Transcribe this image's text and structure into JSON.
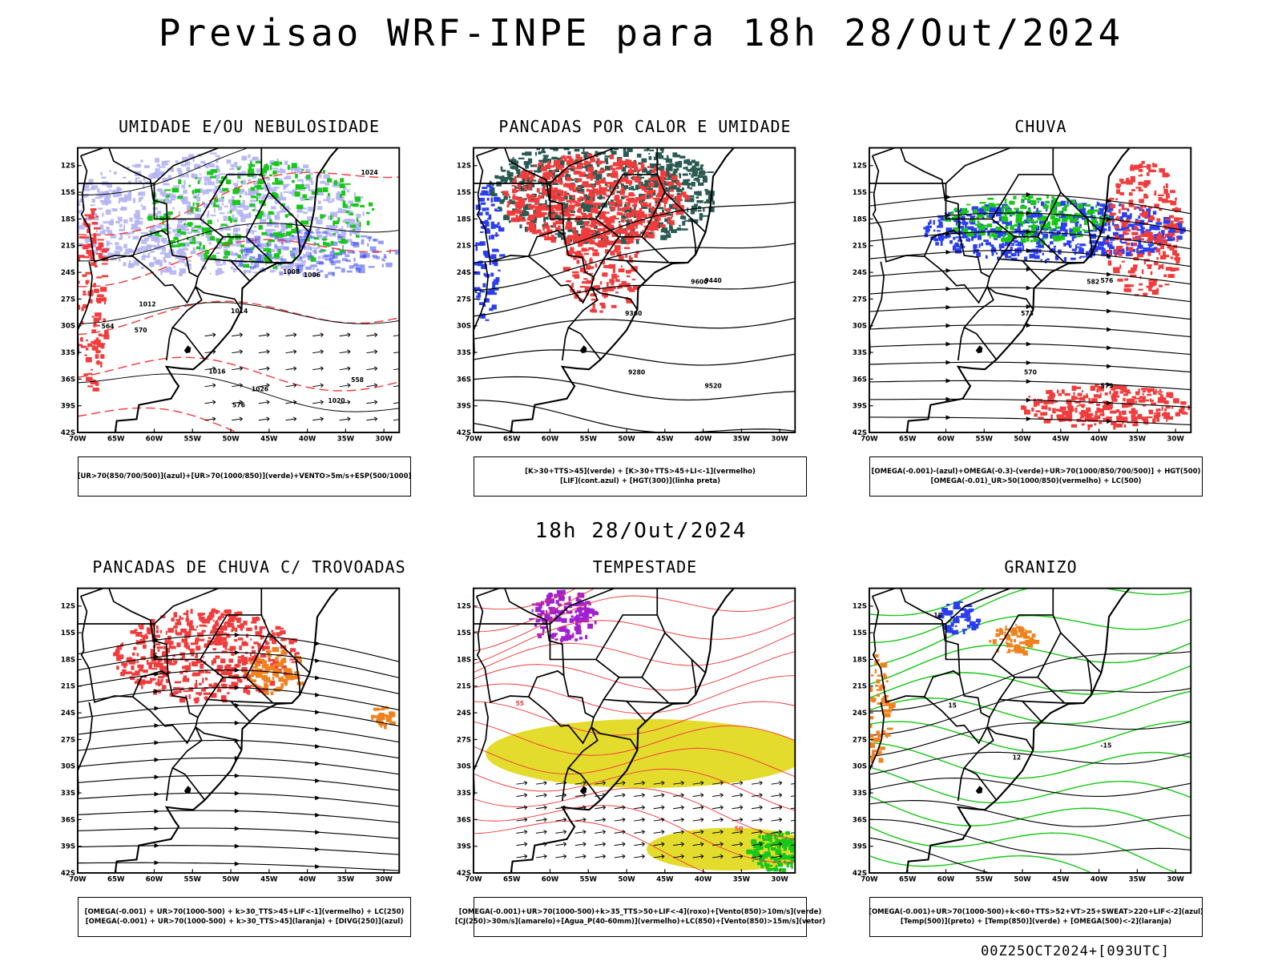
{
  "title": "Previsao WRF-INPE  para 18h 28/Out/2024",
  "subtitle": "18h 28/Out/2024",
  "footer": "00Z25OCT2024+[093UTC]",
  "colors": {
    "red": "#f03c3c",
    "blue": "#2a3ef0",
    "green": "#18c818",
    "lavender": "#b4b4f4",
    "darkteal": "#2a5a52",
    "yellow": "#e4dc2c",
    "orange": "#f0821e",
    "purple": "#a020d0"
  },
  "chart_data": [
    {
      "type": "contour-map",
      "title": "UMIDADE E/OU NEBULOSIDADE",
      "legend_lines": [
        "[UR>70(850/700/500)](azul)+[UR>70(1000/850)](verde)+VENTO>5m/s+ESP(500/1000)"
      ],
      "x_ticks": [
        "70W",
        "65W",
        "60W",
        "55W",
        "50W",
        "45W",
        "40W",
        "35W",
        "30W"
      ],
      "y_ticks": [
        "12S",
        "15S",
        "18S",
        "21S",
        "24S",
        "27S",
        "30S",
        "33S",
        "36S",
        "39S",
        "42S"
      ],
      "xlim": [
        -70,
        -28
      ],
      "ylim": [
        -42,
        -10
      ],
      "contour_labels": [
        "1008",
        "1006",
        "1012",
        "1016",
        "1020",
        "1024",
        "1026",
        "1014",
        "570",
        "576",
        "564",
        "558"
      ]
    },
    {
      "type": "contour-map",
      "title": "PANCADAS POR CALOR E UMIDADE",
      "legend_lines": [
        "[K>30+TTS>45](verde) + [K>30+TTS>45+LI<-1](vermelho)",
        "[LIF](cont.azul) + [HGT(300)](linha preta)"
      ],
      "x_ticks": [
        "70W",
        "65W",
        "60W",
        "55W",
        "50W",
        "45W",
        "40W",
        "35W",
        "30W"
      ],
      "y_ticks": [
        "12S",
        "15S",
        "18S",
        "21S",
        "24S",
        "27S",
        "30S",
        "33S",
        "36S",
        "39S",
        "42S"
      ],
      "xlim": [
        -70,
        -28
      ],
      "ylim": [
        -42,
        -10
      ],
      "contour_labels": [
        "9600",
        "9520",
        "9440",
        "9360",
        "9280"
      ]
    },
    {
      "type": "contour-map",
      "title": "CHUVA",
      "legend_lines": [
        "[OMEGA(-0.001)-(azul)+OMEGA(-0.3)-(verde)+UR>70(1000/850/700/500)] + HGT(500)",
        "[OMEGA(-0.01)_UR>50(1000/850)(vermelho) + LC(500)"
      ],
      "x_ticks": [
        "70W",
        "65W",
        "60W",
        "55W",
        "50W",
        "45W",
        "40W",
        "35W",
        "30W"
      ],
      "y_ticks": [
        "12S",
        "15S",
        "18S",
        "21S",
        "24S",
        "27S",
        "30S",
        "33S",
        "36S",
        "39S",
        "42S"
      ],
      "xlim": [
        -70,
        -28
      ],
      "ylim": [
        -42,
        -10
      ],
      "contour_labels": [
        "582",
        "579",
        "576",
        "573",
        "570"
      ]
    },
    {
      "type": "streamline-map",
      "title": "PANCADAS DE CHUVA C/ TROVOADAS",
      "legend_lines": [
        "[OMEGA(-0.001) + UR>70(1000-500) + k>30_TTS>45+LIF<-1](vermelho) + LC(250)",
        "[OMEGA(-0.001) + UR>70(1000-500) + k>30_TTS>45](laranja) + [DIVG(250)](azul)"
      ],
      "x_ticks": [
        "70W",
        "65W",
        "60W",
        "55W",
        "50W",
        "45W",
        "40W",
        "35W",
        "30W"
      ],
      "y_ticks": [
        "12S",
        "15S",
        "18S",
        "21S",
        "24S",
        "27S",
        "30S",
        "33S",
        "36S",
        "39S",
        "42S"
      ],
      "xlim": [
        -70,
        -28
      ],
      "ylim": [
        -42,
        -10
      ]
    },
    {
      "type": "streamline-map",
      "title": "TEMPESTADE",
      "legend_lines": [
        "[OMEGA(-0.001)+UR>70(1000-500)+k>35_TTS>50+LIF<-4](roxo)+[Vento(850)>10m/s](verde)",
        "[CJ(250)>30m/s](amarelo)+[Agua_P(40-60mm)](vermelho)+LC(850)+[Vento(850)>15m/s](vetor)"
      ],
      "x_ticks": [
        "70W",
        "65W",
        "60W",
        "55W",
        "50W",
        "45W",
        "40W",
        "35W",
        "30W"
      ],
      "y_ticks": [
        "12S",
        "15S",
        "18S",
        "21S",
        "24S",
        "27S",
        "30S",
        "33S",
        "36S",
        "39S",
        "42S"
      ],
      "xlim": [
        -70,
        -28
      ],
      "ylim": [
        -42,
        -10
      ],
      "contour_labels": [
        "50",
        "55"
      ]
    },
    {
      "type": "contour-map",
      "title": "GRANIZO",
      "legend_lines": [
        "[OMEGA(-0.001)+UR>70(1000-500)+k<60+TTS>52+VT>25+SWEAT>220+LIF<-2](azul)",
        "[Temp(500)](preto) + [Temp(850)](verde) + [OMEGA(500)<-2](laranja)"
      ],
      "x_ticks": [
        "70W",
        "65W",
        "60W",
        "55W",
        "50W",
        "45W",
        "40W",
        "35W",
        "30W"
      ],
      "y_ticks": [
        "12S",
        "15S",
        "18S",
        "21S",
        "24S",
        "27S",
        "30S",
        "33S",
        "36S",
        "39S",
        "42S"
      ],
      "xlim": [
        -70,
        -28
      ],
      "ylim": [
        -42,
        -10
      ],
      "contour_labels": [
        "12",
        "15",
        "18",
        "-15"
      ]
    }
  ]
}
